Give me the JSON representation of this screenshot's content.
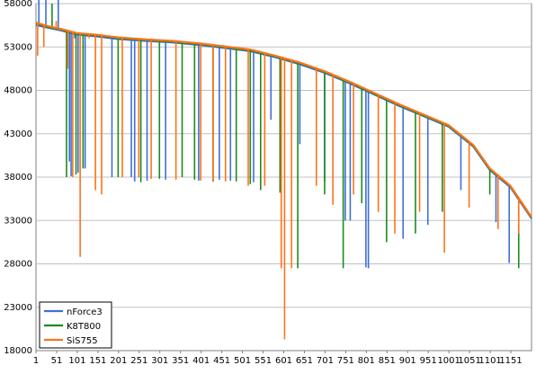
{
  "chart_data": {
    "type": "line",
    "title": "",
    "xlabel": "",
    "ylabel": "",
    "ylim": [
      18000,
      58000
    ],
    "xlim": [
      1,
      1201
    ],
    "y_ticks": [
      18000,
      23000,
      28000,
      33000,
      38000,
      43000,
      48000,
      53000,
      58000
    ],
    "y_tick_labels": [
      "18000",
      "23000",
      "28000",
      "33000",
      "38000",
      "43000",
      "48000",
      "53000",
      "58000"
    ],
    "x_ticks": [
      1,
      51,
      101,
      151,
      201,
      251,
      301,
      351,
      401,
      451,
      501,
      551,
      601,
      651,
      701,
      751,
      801,
      851,
      901,
      951,
      1001,
      1051,
      1101,
      1151
    ],
    "x_tick_labels": [
      "1",
      "51",
      "101",
      "151",
      "201",
      "251",
      "301",
      "351",
      "401",
      "451",
      "501",
      "551",
      "601",
      "651",
      "701",
      "751",
      "801",
      "851",
      "901",
      "951",
      "1001",
      "1051",
      "1101",
      "1151"
    ],
    "grid": true,
    "legend_position": "bottom-left",
    "series": [
      {
        "name": "nForce3",
        "color": "#3f6fd8",
        "points": [
          [
            1,
            55500
          ],
          [
            30,
            55200
          ],
          [
            60,
            54900
          ],
          [
            100,
            54400
          ],
          [
            150,
            54200
          ],
          [
            200,
            53900
          ],
          [
            260,
            53700
          ],
          [
            330,
            53500
          ],
          [
            400,
            53200
          ],
          [
            470,
            52800
          ],
          [
            520,
            52500
          ],
          [
            580,
            51800
          ],
          [
            640,
            51000
          ],
          [
            700,
            50000
          ],
          [
            760,
            48800
          ],
          [
            820,
            47500
          ],
          [
            880,
            46200
          ],
          [
            940,
            45000
          ],
          [
            1000,
            43800
          ],
          [
            1060,
            41500
          ],
          [
            1100,
            38800
          ],
          [
            1150,
            36800
          ],
          [
            1201,
            33200
          ]
        ],
        "drops": [
          [
            8,
            58500
          ],
          [
            25,
            58800
          ],
          [
            55,
            58600
          ],
          [
            82,
            39800
          ],
          [
            86,
            38100
          ],
          [
            95,
            54000
          ],
          [
            103,
            38500
          ],
          [
            120,
            39000
          ],
          [
            185,
            38000
          ],
          [
            232,
            38000
          ],
          [
            240,
            37500
          ],
          [
            270,
            37600
          ],
          [
            315,
            37700
          ],
          [
            395,
            37600
          ],
          [
            445,
            37700
          ],
          [
            472,
            37600
          ],
          [
            528,
            37400
          ],
          [
            570,
            44600
          ],
          [
            640,
            41800
          ],
          [
            700,
            37500
          ],
          [
            750,
            33000
          ],
          [
            762,
            33000
          ],
          [
            800,
            27600
          ],
          [
            806,
            27500
          ],
          [
            890,
            30900
          ],
          [
            950,
            32500
          ],
          [
            1030,
            36500
          ],
          [
            1115,
            32800
          ],
          [
            1147,
            28100
          ]
        ]
      },
      {
        "name": "K8T800",
        "color": "#1e8a1e",
        "points": [
          [
            1,
            55700
          ],
          [
            30,
            55300
          ],
          [
            60,
            55000
          ],
          [
            100,
            54500
          ],
          [
            150,
            54300
          ],
          [
            200,
            54000
          ],
          [
            260,
            53800
          ],
          [
            330,
            53600
          ],
          [
            400,
            53300
          ],
          [
            470,
            52900
          ],
          [
            520,
            52600
          ],
          [
            580,
            51900
          ],
          [
            640,
            51100
          ],
          [
            700,
            50100
          ],
          [
            760,
            48900
          ],
          [
            820,
            47600
          ],
          [
            880,
            46300
          ],
          [
            940,
            45100
          ],
          [
            1000,
            43900
          ],
          [
            1060,
            41600
          ],
          [
            1100,
            38900
          ],
          [
            1150,
            36900
          ],
          [
            1201,
            33300
          ]
        ],
        "drops": [
          [
            40,
            58000
          ],
          [
            75,
            38000
          ],
          [
            98,
            38300
          ],
          [
            115,
            39000
          ],
          [
            200,
            38000
          ],
          [
            255,
            37400
          ],
          [
            300,
            37800
          ],
          [
            355,
            38000
          ],
          [
            385,
            37700
          ],
          [
            430,
            37500
          ],
          [
            486,
            37500
          ],
          [
            520,
            37200
          ],
          [
            545,
            36500
          ],
          [
            592,
            36200
          ],
          [
            635,
            27500
          ],
          [
            700,
            36000
          ],
          [
            745,
            27500
          ],
          [
            790,
            35000
          ],
          [
            850,
            30500
          ],
          [
            920,
            31500
          ],
          [
            985,
            34000
          ],
          [
            1100,
            36000
          ],
          [
            1170,
            27500
          ]
        ]
      },
      {
        "name": "SiS755",
        "color": "#ff7318",
        "points": [
          [
            1,
            55800
          ],
          [
            30,
            55400
          ],
          [
            60,
            55100
          ],
          [
            100,
            54600
          ],
          [
            150,
            54400
          ],
          [
            200,
            54100
          ],
          [
            260,
            53900
          ],
          [
            330,
            53700
          ],
          [
            400,
            53400
          ],
          [
            470,
            53000
          ],
          [
            520,
            52700
          ],
          [
            580,
            52000
          ],
          [
            640,
            51200
          ],
          [
            700,
            50200
          ],
          [
            760,
            49000
          ],
          [
            820,
            47700
          ],
          [
            880,
            46400
          ],
          [
            940,
            45200
          ],
          [
            1000,
            44000
          ],
          [
            1060,
            41700
          ],
          [
            1100,
            39000
          ],
          [
            1150,
            37000
          ],
          [
            1201,
            33400
          ]
        ],
        "drops": [
          [
            5,
            52000
          ],
          [
            20,
            53000
          ],
          [
            50,
            56000
          ],
          [
            78,
            50500
          ],
          [
            90,
            38000
          ],
          [
            108,
            28800
          ],
          [
            130,
            54000
          ],
          [
            145,
            36500
          ],
          [
            160,
            36000
          ],
          [
            210,
            38000
          ],
          [
            250,
            38000
          ],
          [
            280,
            37800
          ],
          [
            340,
            37700
          ],
          [
            400,
            37600
          ],
          [
            430,
            37600
          ],
          [
            460,
            37500
          ],
          [
            515,
            37000
          ],
          [
            555,
            37000
          ],
          [
            595,
            27500
          ],
          [
            603,
            19300
          ],
          [
            620,
            27500
          ],
          [
            680,
            37000
          ],
          [
            720,
            34800
          ],
          [
            770,
            36000
          ],
          [
            830,
            34000
          ],
          [
            870,
            31500
          ],
          [
            930,
            34000
          ],
          [
            990,
            29300
          ],
          [
            1050,
            34500
          ],
          [
            1120,
            32000
          ],
          [
            1170,
            31500
          ]
        ]
      }
    ]
  }
}
